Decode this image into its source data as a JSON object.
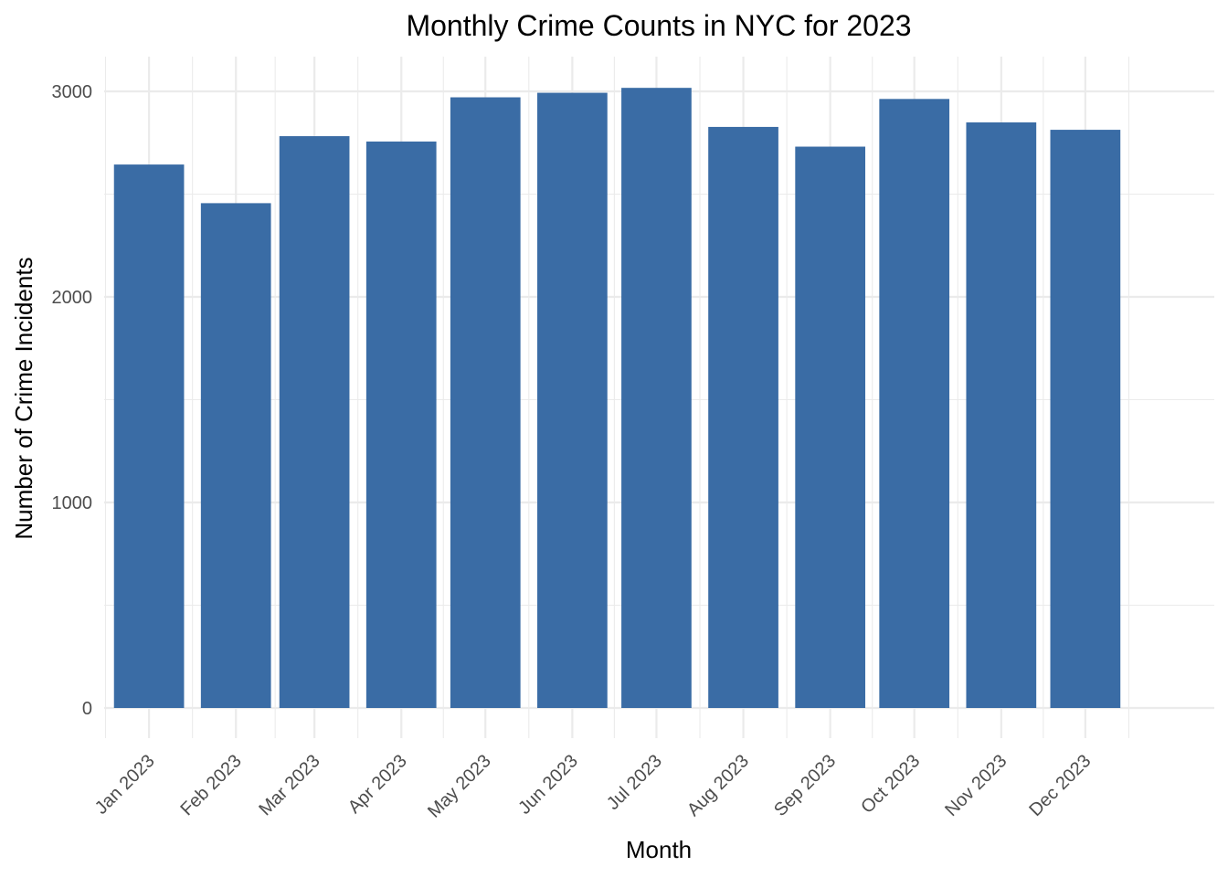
{
  "chart_data": {
    "type": "bar",
    "title": "Monthly Crime Counts in NYC for 2023",
    "xlabel": "Month",
    "ylabel": "Number of Crime Incidents",
    "categories": [
      "Jan 2023",
      "Feb 2023",
      "Mar 2023",
      "Apr 2023",
      "May 2023",
      "Jun 2023",
      "Jul 2023",
      "Aug 2023",
      "Sep 2023",
      "Oct 2023",
      "Nov 2023",
      "Dec 2023"
    ],
    "x_dates": [
      "2023-01-01",
      "2023-02-01",
      "2023-03-01",
      "2023-04-01",
      "2023-05-01",
      "2023-06-01",
      "2023-07-01",
      "2023-08-01",
      "2023-09-01",
      "2023-10-01",
      "2023-11-01",
      "2023-12-01"
    ],
    "values": [
      2644,
      2456,
      2782,
      2756,
      2971,
      2993,
      3017,
      2827,
      2731,
      2963,
      2849,
      2813
    ],
    "y_ticks": [
      0,
      1000,
      2000,
      3000
    ],
    "ylim": [
      0,
      3150
    ],
    "xlim": [
      "2022-12-16",
      "2024-01-16"
    ],
    "bar_color": "#3a6ca5",
    "grid": true,
    "legend": "none"
  }
}
